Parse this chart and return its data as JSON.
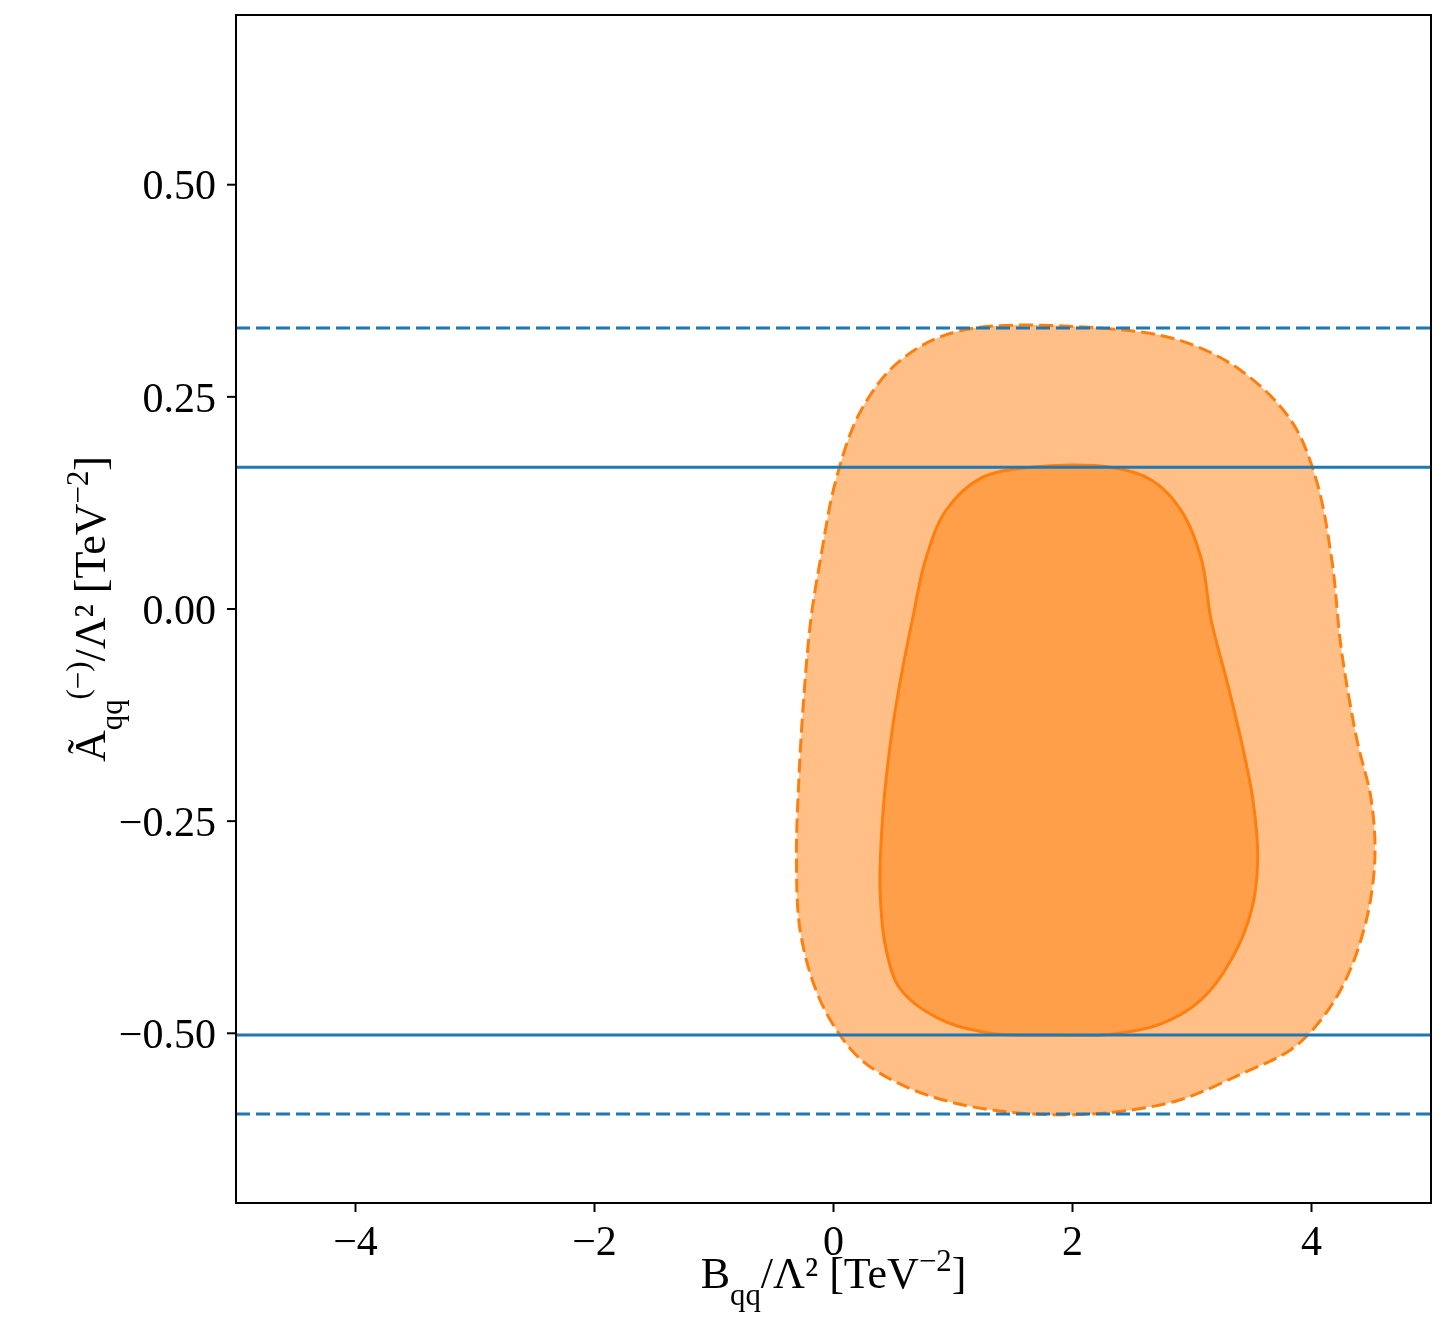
{
  "chart_data": {
    "type": "area",
    "xlabel": "B$_{qq}$/Λ² [TeV$^{−2}$]",
    "ylabel": "Ã$_{qq}$$^{(−)}$/Λ² [TeV$^{−2}$]",
    "xlim": [
      -5,
      5
    ],
    "ylim": [
      -0.7,
      0.7
    ],
    "xticks": [
      {
        "value": -4,
        "label": "−4"
      },
      {
        "value": -2,
        "label": "−2"
      },
      0,
      2,
      4
    ],
    "yticks": [
      {
        "value": -0.5,
        "label": "−0.50"
      },
      {
        "value": -0.25,
        "label": "−0.25"
      },
      {
        "value": 0,
        "label": "0.00"
      },
      {
        "value": 0.25,
        "label": "0.25"
      },
      {
        "value": 0.5,
        "label": "0.50"
      }
    ],
    "grid": false,
    "series": [
      {
        "color": "#ff7f0e",
        "line_style": "dashed",
        "x": [
          1.06,
          2.24,
          2.91,
          3.41,
          3.83,
          4.04,
          4.17,
          4.25,
          4.38,
          4.5,
          4.53,
          4.46,
          4.29,
          4.08,
          3.83,
          3.41,
          2.91,
          2.41,
          1.99,
          1.48,
          0.98,
          0.56,
          0.23,
          0.02,
          -0.15,
          -0.28,
          -0.31,
          -0.29,
          -0.25,
          -0.19,
          -0.11,
          0.02,
          0.23,
          0.56,
          1.06
        ],
        "values": [
          0.328,
          0.331,
          0.316,
          0.281,
          0.222,
          0.152,
          0.058,
          -0.048,
          -0.154,
          -0.225,
          -0.295,
          -0.366,
          -0.436,
          -0.484,
          -0.519,
          -0.548,
          -0.578,
          -0.592,
          -0.596,
          -0.593,
          -0.581,
          -0.56,
          -0.531,
          -0.495,
          -0.448,
          -0.378,
          -0.295,
          -0.201,
          -0.107,
          -0.013,
          0.058,
          0.152,
          0.234,
          0.293,
          0.328
        ]
      },
      {
        "color": "#ff7f0e",
        "line_style": "solid",
        "x": [
          1.65,
          2.32,
          2.66,
          2.91,
          3.08,
          3.16,
          3.29,
          3.41,
          3.51,
          3.55,
          3.5,
          3.33,
          3.08,
          2.74,
          2.32,
          1.82,
          1.32,
          0.9,
          0.56,
          0.44,
          0.39,
          0.41,
          0.48,
          0.56,
          0.66,
          0.77,
          0.94,
          1.23,
          1.65
        ],
        "values": [
          0.167,
          0.167,
          0.152,
          0.116,
          0.058,
          -0.013,
          -0.084,
          -0.154,
          -0.225,
          -0.295,
          -0.354,
          -0.413,
          -0.46,
          -0.489,
          -0.501,
          -0.502,
          -0.5,
          -0.484,
          -0.448,
          -0.401,
          -0.331,
          -0.248,
          -0.154,
          -0.084,
          -0.013,
          0.058,
          0.116,
          0.154,
          0.167
        ]
      }
    ],
    "ref_lines": [
      {
        "axis": "y",
        "value": 0.331,
        "color": "#1f77b4",
        "line_style": "dashed"
      },
      {
        "axis": "y",
        "value": 0.167,
        "color": "#1f77b4",
        "line_style": "solid"
      },
      {
        "axis": "y",
        "value": -0.502,
        "color": "#1f77b4",
        "line_style": "solid"
      },
      {
        "axis": "y",
        "value": -0.595,
        "color": "#1f77b4",
        "line_style": "dashed"
      }
    ]
  }
}
